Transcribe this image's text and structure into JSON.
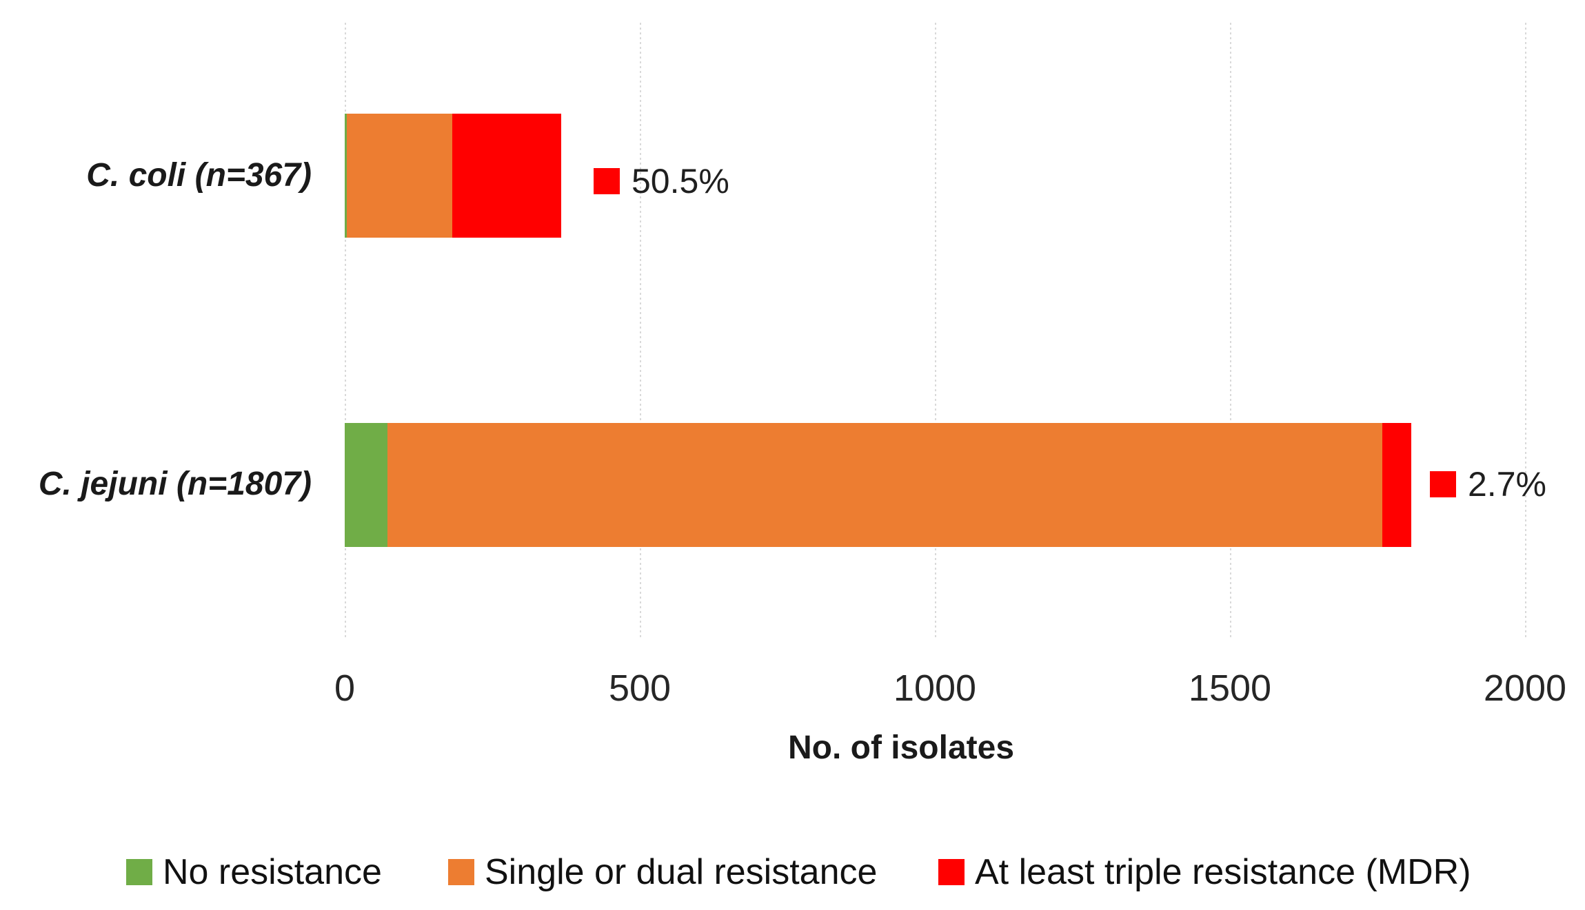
{
  "chart_data": {
    "type": "bar",
    "orientation": "horizontal",
    "stacked": true,
    "title": "",
    "xlabel": "No. of isolates",
    "ylabel": "",
    "xlim": [
      0,
      2000
    ],
    "x_ticks": [
      0,
      500,
      1000,
      1500,
      2000
    ],
    "grid": true,
    "legend_position": "bottom",
    "categories": [
      "C. coli (n=367)",
      "C. jejuni (n=1807)"
    ],
    "series": [
      {
        "name": "No resistance",
        "color": "#70AD47",
        "values": [
          3,
          72
        ]
      },
      {
        "name": "Single or dual resistance",
        "color": "#ED7D31",
        "values": [
          179,
          1686
        ]
      },
      {
        "name": "At least triple resistance (MDR)",
        "color": "#FF0000",
        "values": [
          185,
          49
        ]
      }
    ],
    "annotations": [
      {
        "category": "C. coli (n=367)",
        "label": "50.5%",
        "refers_to": "At least triple resistance (MDR)",
        "marker_color": "#FF0000"
      },
      {
        "category": "C. jejuni (n=1807)",
        "label": "2.7%",
        "refers_to": "At least triple resistance (MDR)",
        "marker_color": "#FF0000"
      }
    ]
  },
  "colors": {
    "background": "#FFFFFF",
    "gridline": "#D9D9D9",
    "text": "#1F1F1F"
  }
}
